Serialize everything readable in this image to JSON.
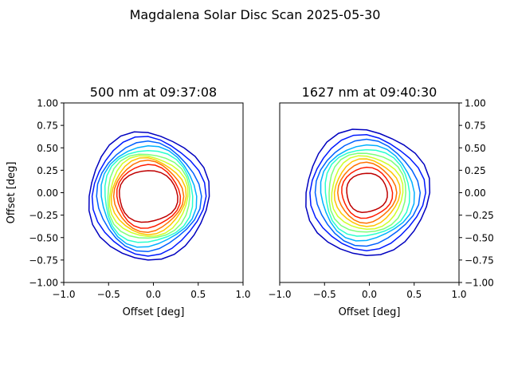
{
  "suptitle": "Magdalena Solar Disc Scan 2025-05-30",
  "chart_data": [
    {
      "type": "contour",
      "title": "500 nm at 09:37:08",
      "xlabel": "Offset [deg]",
      "ylabel": "Offset [deg]",
      "xlim": [
        -1.0,
        1.0
      ],
      "ylim": [
        -1.0,
        1.0
      ],
      "xticks": [
        "−1.0",
        "−0.5",
        "0.0",
        "0.5",
        "1.0"
      ],
      "yticks": [
        "−1.00",
        "−0.75",
        "−0.50",
        "−0.25",
        "0.00",
        "0.25",
        "0.50",
        "0.75",
        "1.00"
      ],
      "yaxis_side": "left",
      "grid": false,
      "center": [
        -0.06,
        -0.04
      ],
      "levels": [
        {
          "rx": 0.67,
          "ry": 0.71,
          "color": "#0000bf"
        },
        {
          "rx": 0.62,
          "ry": 0.65,
          "color": "#0019ff"
        },
        {
          "rx": 0.57,
          "ry": 0.6,
          "color": "#0060ff"
        },
        {
          "rx": 0.53,
          "ry": 0.56,
          "color": "#00b0ff"
        },
        {
          "rx": 0.5,
          "ry": 0.52,
          "color": "#29ffce"
        },
        {
          "rx": 0.47,
          "ry": 0.48,
          "color": "#7dff7a"
        },
        {
          "rx": 0.44,
          "ry": 0.45,
          "color": "#ceff29"
        },
        {
          "rx": 0.41,
          "ry": 0.42,
          "color": "#ffc400"
        },
        {
          "rx": 0.38,
          "ry": 0.39,
          "color": "#ff7100"
        },
        {
          "rx": 0.35,
          "ry": 0.35,
          "color": "#ff1d00"
        },
        {
          "rx": 0.33,
          "ry": 0.29,
          "color": "#bf0000"
        }
      ]
    },
    {
      "type": "contour",
      "title": "1627 nm at 09:40:30",
      "xlabel": "Offset [deg]",
      "ylabel": "",
      "xlim": [
        -1.0,
        1.0
      ],
      "ylim": [
        -1.0,
        1.0
      ],
      "xticks": [
        "−1.0",
        "−0.5",
        "0.0",
        "0.5",
        "1.0"
      ],
      "yticks": [
        "−1.00",
        "−0.75",
        "−0.50",
        "−0.25",
        "0.00",
        "0.25",
        "0.50",
        "0.75",
        "1.00"
      ],
      "yaxis_side": "right",
      "grid": false,
      "center": [
        -0.03,
        0.0
      ],
      "levels": [
        {
          "rx": 0.69,
          "ry": 0.7,
          "color": "#0000bf"
        },
        {
          "rx": 0.63,
          "ry": 0.63,
          "color": "#0019ff"
        },
        {
          "rx": 0.57,
          "ry": 0.58,
          "color": "#0060ff"
        },
        {
          "rx": 0.52,
          "ry": 0.53,
          "color": "#00b0ff"
        },
        {
          "rx": 0.48,
          "ry": 0.49,
          "color": "#29ffce"
        },
        {
          "rx": 0.44,
          "ry": 0.45,
          "color": "#7dff7a"
        },
        {
          "rx": 0.4,
          "ry": 0.41,
          "color": "#ceff29"
        },
        {
          "rx": 0.36,
          "ry": 0.37,
          "color": "#ffc400"
        },
        {
          "rx": 0.32,
          "ry": 0.33,
          "color": "#ff7100"
        },
        {
          "rx": 0.28,
          "ry": 0.28,
          "color": "#ff1d00"
        },
        {
          "rx": 0.23,
          "ry": 0.22,
          "color": "#bf0000"
        }
      ]
    }
  ]
}
